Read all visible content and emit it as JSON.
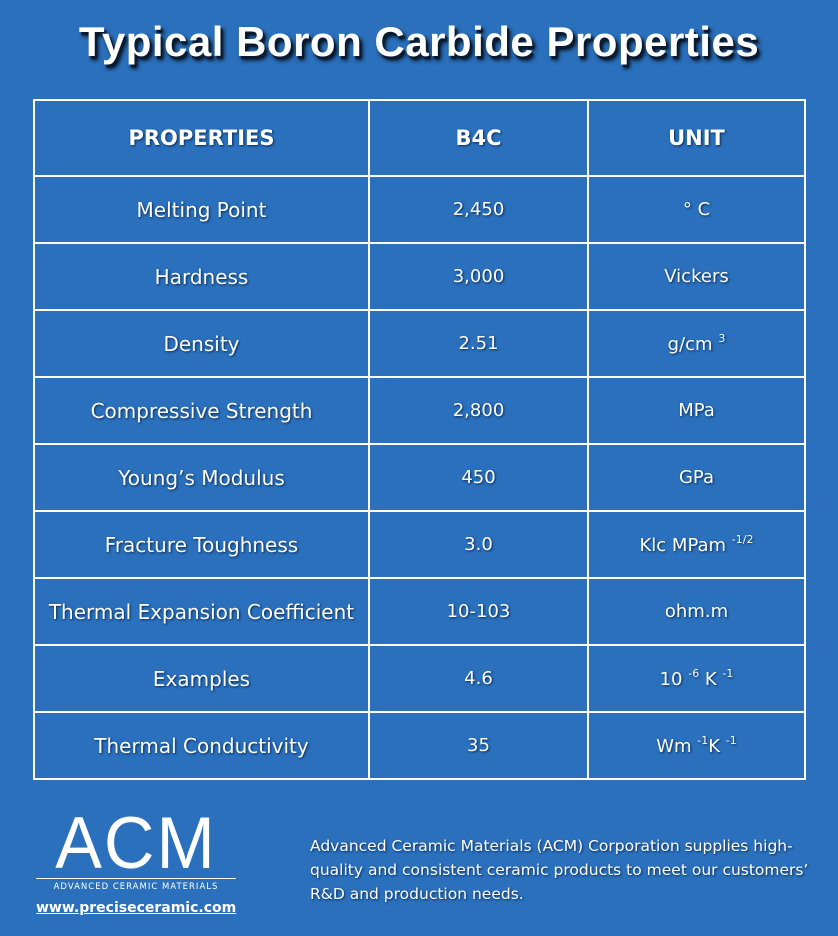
{
  "header": {
    "title": "Typical Boron Carbide Properties"
  },
  "table": {
    "columns": [
      "PROPERTIES",
      "B4C",
      "UNIT"
    ],
    "rows": [
      {
        "property": "Melting Point",
        "value": "2,450",
        "unit": [
          {
            "text": "° C"
          }
        ]
      },
      {
        "property": "Hardness",
        "value": "3,000",
        "unit": [
          {
            "text": "Vickers"
          }
        ]
      },
      {
        "property": "Density",
        "value": "2.51",
        "unit": [
          {
            "text": "g/cm "
          },
          {
            "text": "3",
            "sup": true
          }
        ]
      },
      {
        "property": "Compressive Strength",
        "value": "2,800",
        "unit": [
          {
            "text": "MPa"
          }
        ]
      },
      {
        "property": "Young’s Modulus",
        "value": "450",
        "unit": [
          {
            "text": "GPa"
          }
        ]
      },
      {
        "property": "Fracture Toughness",
        "value": "3.0",
        "unit": [
          {
            "text": "Klc MPam "
          },
          {
            "text": "-1/2",
            "sup": true
          }
        ]
      },
      {
        "property": "Thermal Expansion Coefficient",
        "value": "10-103",
        "unit": [
          {
            "text": "ohm.m"
          }
        ]
      },
      {
        "property": "Examples",
        "value": "4.6",
        "unit": [
          {
            "text": "10 "
          },
          {
            "text": "-6",
            "sup": true
          },
          {
            "text": " K "
          },
          {
            "text": "-1",
            "sup": true
          }
        ]
      },
      {
        "property": "Thermal Conductivity",
        "value": "35",
        "unit": [
          {
            "text": "Wm "
          },
          {
            "text": "-1",
            "sup": true
          },
          {
            "text": "K "
          },
          {
            "text": "-1",
            "sup": true
          }
        ]
      }
    ]
  },
  "footer": {
    "logo": "ACM",
    "logo_subtitle": "ADVANCED CERAMIC MATERIALS",
    "url": "www.preciseceramic.com",
    "description": "Advanced Ceramic Materials (ACM) Corporation supplies high-quality and consistent ceramic products to meet our customers’ R&D and production needs."
  }
}
